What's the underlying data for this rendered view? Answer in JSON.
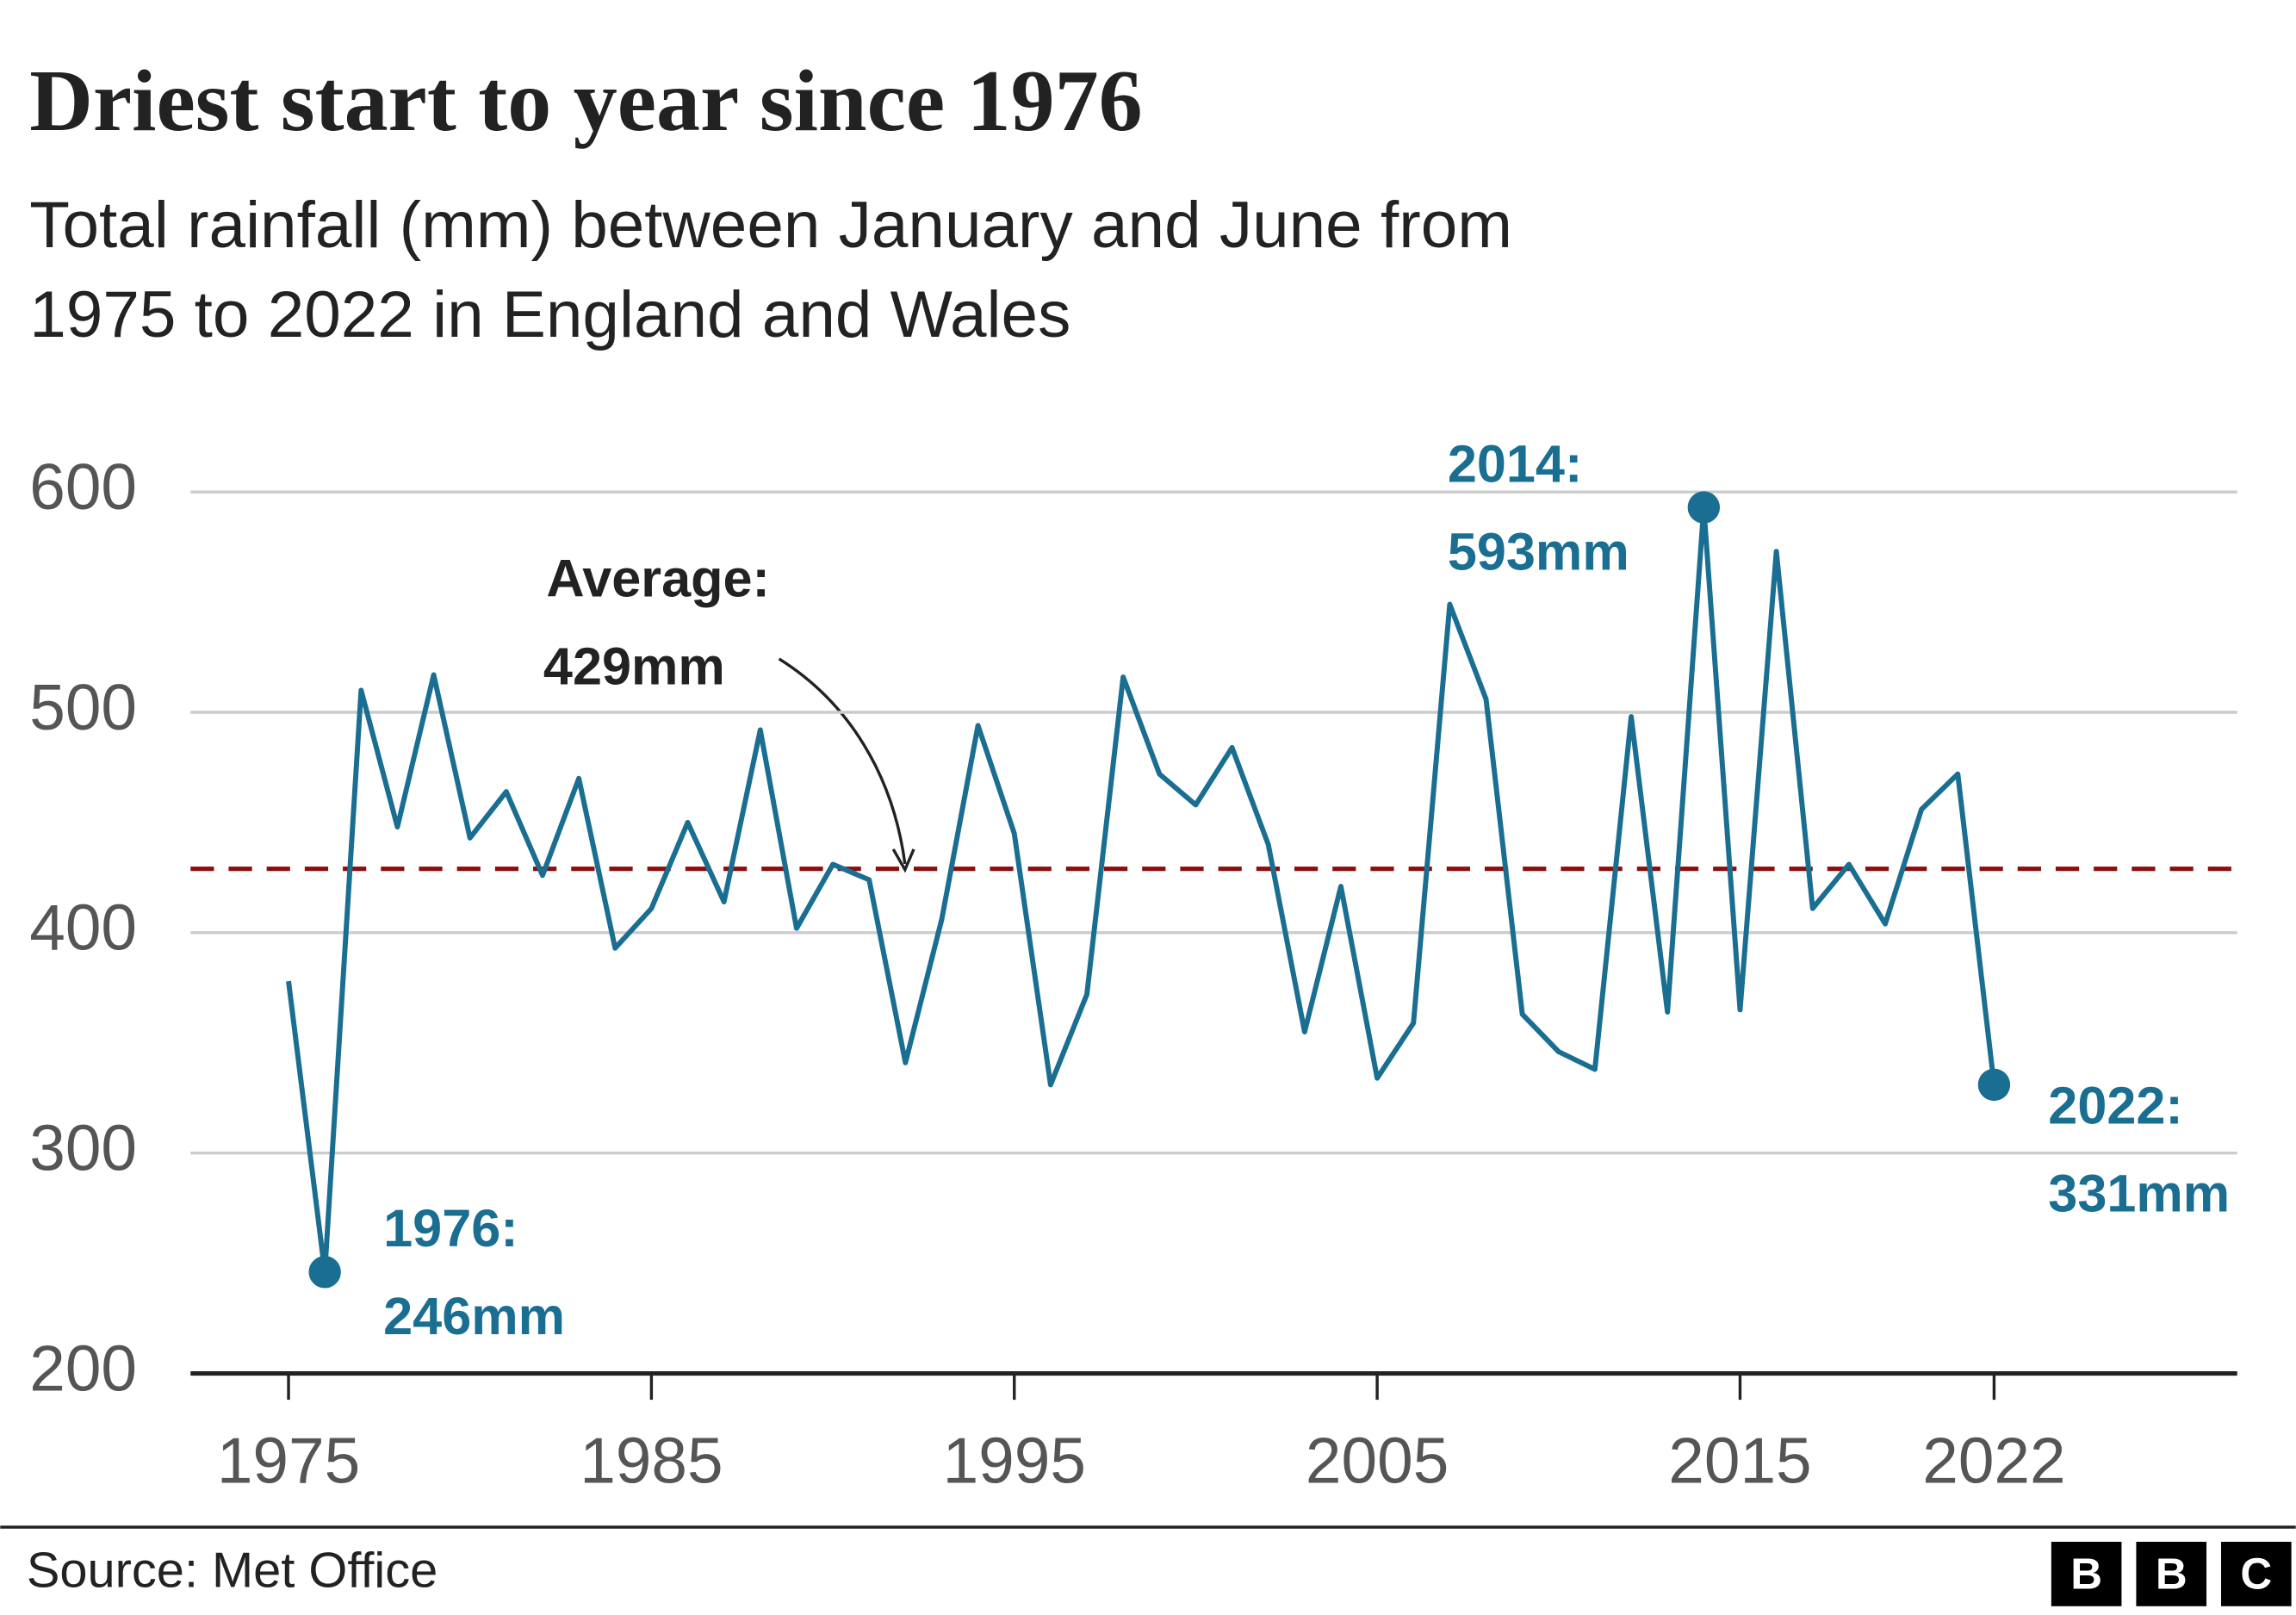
{
  "chart_data": {
    "type": "line",
    "title": "Driest start to year since 1976",
    "subtitle": [
      "Total rainfall (mm) between January and June from",
      "1975 to 2022 in England and Wales"
    ],
    "x": [
      1975,
      1976,
      1977,
      1978,
      1979,
      1980,
      1981,
      1982,
      1983,
      1984,
      1985,
      1986,
      1987,
      1988,
      1989,
      1990,
      1991,
      1992,
      1993,
      1994,
      1995,
      1996,
      1997,
      1998,
      1999,
      2000,
      2001,
      2002,
      2003,
      2004,
      2005,
      2006,
      2007,
      2008,
      2009,
      2010,
      2011,
      2012,
      2013,
      2014,
      2015,
      2016,
      2017,
      2018,
      2019,
      2020,
      2021,
      2022
    ],
    "series": [
      {
        "color": "#1a6e91",
        "values": [
          378,
          246,
          510,
          448,
          517,
          443,
          464,
          426,
          470,
          393,
          411,
          450,
          414,
          492,
          402,
          431,
          424,
          341,
          406,
          494,
          445,
          331,
          372,
          516,
          472,
          458,
          484,
          440,
          355,
          421,
          334,
          359,
          549,
          506,
          363,
          346,
          338,
          498,
          364,
          593,
          365,
          573,
          411,
          431,
          404,
          456,
          472,
          331
        ]
      }
    ],
    "xlim": [
      1972.3,
      2028.7
    ],
    "ylim": [
      200,
      600
    ],
    "xticks": [
      1975,
      1985,
      1995,
      2005,
      2015,
      2022
    ],
    "yticks": [
      200,
      300,
      400,
      500,
      600
    ],
    "grid": true,
    "average": {
      "label": "Average:",
      "value": 429,
      "value_label": "429mm",
      "color": "#8b0d0d"
    },
    "annotations": [
      {
        "x": 1976,
        "y": 246,
        "label": "1976:",
        "value_label": "246mm"
      },
      {
        "x": 2014,
        "y": 593,
        "label": "2014:",
        "value_label": "593mm"
      },
      {
        "x": 2022,
        "y": 331,
        "label": "2022:",
        "value_label": "331mm"
      }
    ],
    "source": "Source: Met Office",
    "logo": [
      "B",
      "B",
      "C"
    ]
  }
}
